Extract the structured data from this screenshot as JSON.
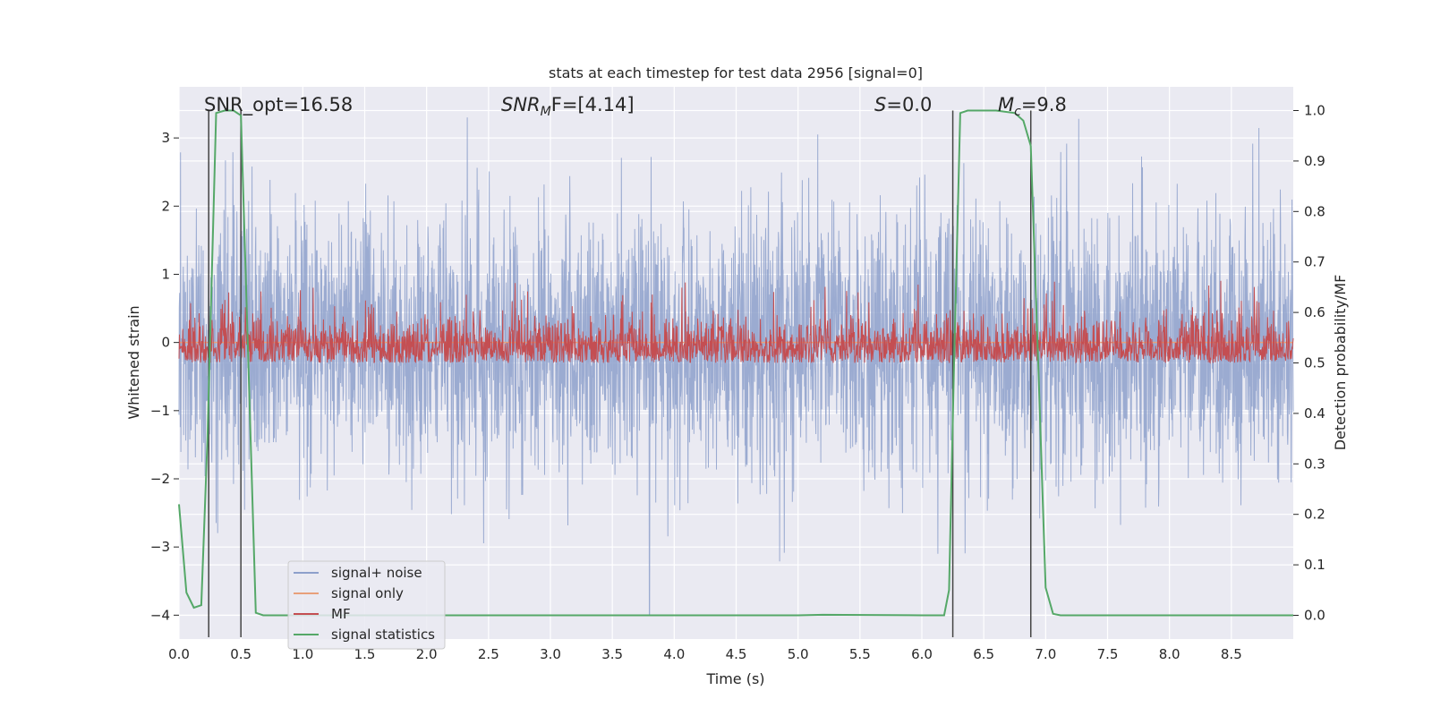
{
  "chart_data": {
    "type": "line",
    "title": "stats at each timestep for test data 2956 [signal=0]",
    "xlabel": "Time (s)",
    "ylabel_left": "Whitened strain",
    "ylabel_right": "Detection probability/MF",
    "xlim": [
      0.0,
      9.0
    ],
    "ylim_left": [
      -4.35,
      3.75
    ],
    "ylim_right": [
      -0.047,
      1.047
    ],
    "x_ticks": [
      "0.0",
      "0.5",
      "1.0",
      "1.5",
      "2.0",
      "2.5",
      "3.0",
      "3.5",
      "4.0",
      "4.5",
      "5.0",
      "5.5",
      "6.0",
      "6.5",
      "7.0",
      "7.5",
      "8.0",
      "8.5"
    ],
    "y_ticks_left": [
      "3",
      "2",
      "1",
      "0",
      "−1",
      "−2",
      "−3",
      "−4"
    ],
    "y_ticks_right": [
      "1.0",
      "0.9",
      "0.8",
      "0.7",
      "0.6",
      "0.5",
      "0.4",
      "0.3",
      "0.2",
      "0.1",
      "0.0"
    ],
    "grid": true,
    "annotations": {
      "snr_opt": "SNR_opt=16.58",
      "snr_mf_sym": "SNR",
      "snr_mf_sub": "M",
      "snr_mf_rest": "F=[4.14]",
      "s_sym": "S",
      "s_rest": "=0.0",
      "mc_sym": "M",
      "mc_sub": "c",
      "mc_rest": "=9.8"
    },
    "vertical_lines_x": [
      0.24,
      0.5,
      6.25,
      6.88
    ],
    "legend": {
      "position": "lower left",
      "entries": [
        "signal+ noise",
        "signal only",
        "MF",
        "signal statistics"
      ]
    },
    "colors": {
      "noise": "#8da0cb",
      "signal": "#e8a07a",
      "mf": "#c44e52",
      "stat": "#55a868",
      "vline": "#444444",
      "bg": "#eaeaf2",
      "grid": "#ffffff"
    },
    "series": [
      {
        "name": "signal+ noise",
        "axis": "left",
        "description_values": {
          "envelope_pos_typical": 2.0,
          "envelope_neg_typical": -2.0,
          "max": 3.3,
          "min": -4.0
        }
      },
      {
        "name": "signal only",
        "axis": "left",
        "x": [
          0.0,
          9.0
        ],
        "y": [
          0.0,
          0.0
        ]
      },
      {
        "name": "MF",
        "axis": "right",
        "description_values": {
          "base": 0.5,
          "typical_max": 0.62,
          "peak": 0.7
        }
      },
      {
        "name": "signal statistics",
        "axis": "right",
        "x": [
          0.0,
          0.06,
          0.12,
          0.18,
          0.23,
          0.3,
          0.37,
          0.44,
          0.5,
          0.56,
          0.62,
          0.68,
          1.0,
          2.0,
          3.0,
          4.0,
          5.0,
          5.2,
          6.0,
          6.18,
          6.22,
          6.26,
          6.31,
          6.37,
          6.44,
          6.6,
          6.75,
          6.82,
          6.88,
          6.94,
          7.0,
          7.06,
          7.12,
          7.2,
          8.0,
          8.5,
          9.0
        ],
        "y": [
          0.22,
          0.045,
          0.015,
          0.02,
          0.35,
          0.995,
          1.0,
          1.0,
          0.99,
          0.5,
          0.005,
          0.0,
          0.0,
          0.0,
          0.0,
          0.0,
          0.0,
          0.001,
          0.0,
          0.0,
          0.05,
          0.5,
          0.995,
          1.0,
          1.0,
          1.0,
          0.995,
          0.98,
          0.93,
          0.5,
          0.055,
          0.003,
          0.0,
          0.0,
          0.0,
          0.0,
          0.0
        ]
      }
    ]
  }
}
